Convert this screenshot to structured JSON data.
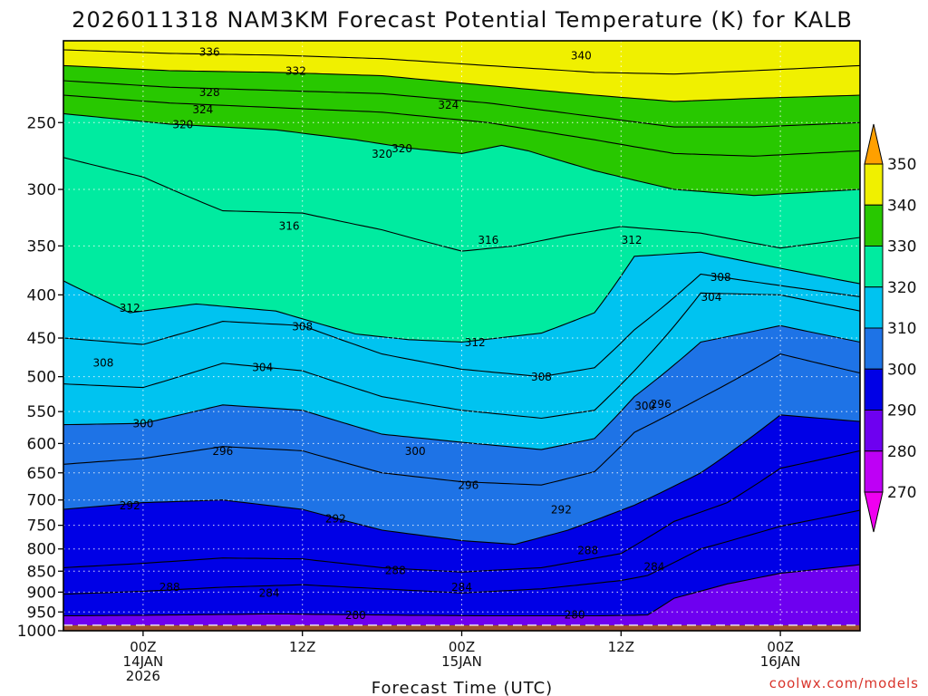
{
  "chart_data": {
    "type": "filled-contour",
    "title": "2026011318 NAM3KM Forecast Potential Temperature (K) for KALB",
    "xlabel": "Forecast Time (UTC)",
    "ylabel": "",
    "credit": "coolwx.com/models",
    "y_ticks": [
      "250",
      "300",
      "350",
      "400",
      "450",
      "500",
      "550",
      "600",
      "650",
      "700",
      "750",
      "800",
      "850",
      "900",
      "950",
      "1000"
    ],
    "x_ticks": [
      {
        "lines": [
          "00Z",
          "14JAN",
          "2026"
        ],
        "hour": 6
      },
      {
        "lines": [
          "12Z"
        ],
        "hour": 18
      },
      {
        "lines": [
          "00Z",
          "15JAN"
        ],
        "hour": 30
      },
      {
        "lines": [
          "12Z"
        ],
        "hour": 42
      },
      {
        "lines": [
          "00Z",
          "16JAN"
        ],
        "hour": 54
      }
    ],
    "x_range_hours": [
      0,
      60
    ],
    "y_range_hpa": [
      200,
      1000
    ],
    "colorbar": {
      "labels": [
        "350",
        "340",
        "330",
        "320",
        "310",
        "300",
        "290",
        "280",
        "270"
      ],
      "bins": [
        {
          "lo": 340,
          "hi": 350,
          "color": "#ffa000"
        },
        {
          "lo": 330,
          "hi": 340,
          "color": "#f0f000"
        },
        {
          "lo": 320,
          "hi": 330,
          "color": "#28c800"
        },
        {
          "lo": 310,
          "hi": 320,
          "color": "#00eba0"
        },
        {
          "lo": 300,
          "hi": 310,
          "color": "#00c3f0"
        },
        {
          "lo": 290,
          "hi": 300,
          "color": "#1e73e6"
        },
        {
          "lo": 280,
          "hi": 290,
          "color": "#0000e6"
        },
        {
          "lo": 270,
          "hi": 280,
          "color": "#6e00f0"
        },
        {
          "lo": 260,
          "hi": 270,
          "color": "#be00f5"
        },
        {
          "lo": 250,
          "hi": 260,
          "color": "#f000f0"
        }
      ]
    },
    "surface_color": "#a0522d",
    "contour_labels": [
      "336",
      "332",
      "328",
      "324",
      "320",
      "324",
      "320",
      "340",
      "316",
      "320",
      "316",
      "312",
      "312",
      "308",
      "312",
      "304",
      "308",
      "308",
      "304",
      "300",
      "308",
      "300",
      "296",
      "300",
      "296",
      "292",
      "292",
      "296",
      "292",
      "288",
      "288",
      "284",
      "288",
      "284",
      "284",
      "280",
      "280"
    ],
    "isentropes": [
      {
        "theta": 336,
        "p": [
          [
            0,
            205
          ],
          [
            8,
            207
          ],
          [
            16,
            208
          ],
          [
            24,
            210
          ],
          [
            32,
            214
          ],
          [
            40,
            218
          ],
          [
            46,
            219
          ],
          [
            52,
            217
          ],
          [
            60,
            214
          ]
        ]
      },
      {
        "theta": 332,
        "p": [
          [
            0,
            214
          ],
          [
            8,
            217
          ],
          [
            16,
            218
          ],
          [
            24,
            220
          ],
          [
            32,
            226
          ],
          [
            40,
            232
          ],
          [
            46,
            236
          ],
          [
            52,
            234
          ],
          [
            60,
            232
          ]
        ]
      },
      {
        "theta": 328,
        "p": [
          [
            0,
            223
          ],
          [
            8,
            227
          ],
          [
            16,
            229
          ],
          [
            24,
            231
          ],
          [
            32,
            237
          ],
          [
            40,
            246
          ],
          [
            46,
            253
          ],
          [
            52,
            253
          ],
          [
            60,
            250
          ]
        ]
      },
      {
        "theta": 324,
        "p": [
          [
            0,
            232
          ],
          [
            8,
            237
          ],
          [
            16,
            240
          ],
          [
            24,
            243
          ],
          [
            32,
            250
          ],
          [
            40,
            262
          ],
          [
            46,
            272
          ],
          [
            52,
            274
          ],
          [
            60,
            270
          ]
        ]
      },
      {
        "theta": 320,
        "p": [
          [
            0,
            244
          ],
          [
            8,
            251
          ],
          [
            16,
            255
          ],
          [
            22,
            262
          ],
          [
            26,
            268
          ],
          [
            30,
            272
          ],
          [
            33,
            266
          ],
          [
            35,
            270
          ],
          [
            40,
            285
          ],
          [
            46,
            300
          ],
          [
            52,
            305
          ],
          [
            60,
            300
          ]
        ]
      },
      {
        "theta": 316,
        "p": [
          [
            0,
            275
          ],
          [
            6,
            290
          ],
          [
            12,
            318
          ],
          [
            18,
            320
          ],
          [
            24,
            335
          ],
          [
            30,
            355
          ],
          [
            34,
            350
          ],
          [
            38,
            340
          ],
          [
            42,
            332
          ],
          [
            48,
            338
          ],
          [
            54,
            352
          ],
          [
            60,
            342
          ]
        ]
      },
      {
        "theta": 312,
        "p": [
          [
            0,
            385
          ],
          [
            5,
            420
          ],
          [
            10,
            410
          ],
          [
            16,
            418
          ],
          [
            22,
            445
          ],
          [
            26,
            452
          ],
          [
            30,
            455
          ],
          [
            36,
            444
          ],
          [
            40,
            420
          ],
          [
            43,
            360
          ],
          [
            48,
            356
          ],
          [
            54,
            372
          ],
          [
            60,
            388
          ]
        ]
      },
      {
        "theta": 308,
        "p": [
          [
            0,
            450
          ],
          [
            6,
            458
          ],
          [
            12,
            430
          ],
          [
            18,
            435
          ],
          [
            24,
            470
          ],
          [
            30,
            490
          ],
          [
            36,
            500
          ],
          [
            40,
            488
          ],
          [
            43,
            440
          ],
          [
            48,
            378
          ],
          [
            54,
            390
          ],
          [
            60,
            402
          ]
        ]
      },
      {
        "theta": 304,
        "p": [
          [
            0,
            510
          ],
          [
            6,
            515
          ],
          [
            12,
            482
          ],
          [
            18,
            492
          ],
          [
            24,
            528
          ],
          [
            30,
            548
          ],
          [
            36,
            560
          ],
          [
            40,
            548
          ],
          [
            43,
            492
          ],
          [
            48,
            398
          ],
          [
            54,
            400
          ],
          [
            60,
            418
          ]
        ]
      },
      {
        "theta": 300,
        "p": [
          [
            0,
            570
          ],
          [
            6,
            568
          ],
          [
            12,
            540
          ],
          [
            18,
            548
          ],
          [
            24,
            585
          ],
          [
            30,
            598
          ],
          [
            36,
            610
          ],
          [
            40,
            592
          ],
          [
            43,
            528
          ],
          [
            48,
            455
          ],
          [
            54,
            435
          ],
          [
            60,
            455
          ]
        ]
      },
      {
        "theta": 296,
        "p": [
          [
            0,
            635
          ],
          [
            6,
            625
          ],
          [
            12,
            605
          ],
          [
            18,
            612
          ],
          [
            24,
            650
          ],
          [
            30,
            666
          ],
          [
            36,
            672
          ],
          [
            40,
            648
          ],
          [
            43,
            582
          ],
          [
            48,
            530
          ],
          [
            54,
            470
          ],
          [
            60,
            495
          ]
        ]
      },
      {
        "theta": 292,
        "p": [
          [
            0,
            718
          ],
          [
            6,
            705
          ],
          [
            12,
            700
          ],
          [
            18,
            718
          ],
          [
            24,
            760
          ],
          [
            30,
            782
          ],
          [
            34,
            790
          ],
          [
            38,
            760
          ],
          [
            43,
            710
          ],
          [
            48,
            650
          ],
          [
            54,
            555
          ],
          [
            60,
            565
          ]
        ]
      },
      {
        "theta": 288,
        "p": [
          [
            0,
            842
          ],
          [
            6,
            832
          ],
          [
            12,
            820
          ],
          [
            18,
            822
          ],
          [
            24,
            842
          ],
          [
            30,
            852
          ],
          [
            36,
            842
          ],
          [
            42,
            810
          ],
          [
            46,
            742
          ],
          [
            50,
            705
          ],
          [
            54,
            642
          ],
          [
            60,
            612
          ]
        ]
      },
      {
        "theta": 284,
        "p": [
          [
            0,
            905
          ],
          [
            6,
            898
          ],
          [
            12,
            888
          ],
          [
            18,
            882
          ],
          [
            24,
            892
          ],
          [
            30,
            902
          ],
          [
            36,
            892
          ],
          [
            42,
            872
          ],
          [
            44,
            860
          ],
          [
            48,
            800
          ],
          [
            54,
            752
          ],
          [
            60,
            720
          ]
        ]
      },
      {
        "theta": 280,
        "p": [
          [
            0,
            960
          ],
          [
            8,
            958
          ],
          [
            16,
            955
          ],
          [
            24,
            958
          ],
          [
            32,
            960
          ],
          [
            40,
            960
          ],
          [
            44,
            958
          ],
          [
            46,
            915
          ],
          [
            50,
            880
          ],
          [
            54,
            855
          ],
          [
            60,
            835
          ]
        ]
      }
    ],
    "label_positions": [
      {
        "t": 336,
        "h": 11.0,
        "p": 206
      },
      {
        "t": 332,
        "h": 17.5,
        "p": 217
      },
      {
        "t": 328,
        "h": 11.0,
        "p": 230
      },
      {
        "t": 324,
        "h": 10.5,
        "p": 241
      },
      {
        "t": 320,
        "h": 9.0,
        "p": 251
      },
      {
        "t": 324,
        "h": 29.0,
        "p": 238
      },
      {
        "t": 320,
        "h": 24.0,
        "p": 272
      },
      {
        "t": 340,
        "h": 39.0,
        "p": 208
      },
      {
        "t": 316,
        "h": 17.0,
        "p": 331
      },
      {
        "t": 320,
        "h": 25.5,
        "p": 268
      },
      {
        "t": 316,
        "h": 32.0,
        "p": 344
      },
      {
        "t": 312,
        "h": 42.8,
        "p": 344
      },
      {
        "t": 312,
        "h": 5.0,
        "p": 414
      },
      {
        "t": 308,
        "h": 18.0,
        "p": 436
      },
      {
        "t": 312,
        "h": 31.0,
        "p": 455
      },
      {
        "t": 304,
        "h": 48.8,
        "p": 402
      },
      {
        "t": 308,
        "h": 49.5,
        "p": 381
      },
      {
        "t": 308,
        "h": 3.0,
        "p": 481
      },
      {
        "t": 304,
        "h": 15.0,
        "p": 487
      },
      {
        "t": 300,
        "h": 6.0,
        "p": 568
      },
      {
        "t": 308,
        "h": 36.0,
        "p": 500
      },
      {
        "t": 300,
        "h": 43.8,
        "p": 541
      },
      {
        "t": 296,
        "h": 45.0,
        "p": 538
      },
      {
        "t": 300,
        "h": 26.5,
        "p": 612
      },
      {
        "t": 296,
        "h": 12.0,
        "p": 612
      },
      {
        "t": 292,
        "h": 5.0,
        "p": 710
      },
      {
        "t": 292,
        "h": 20.5,
        "p": 736
      },
      {
        "t": 296,
        "h": 30.5,
        "p": 672
      },
      {
        "t": 292,
        "h": 37.5,
        "p": 718
      },
      {
        "t": 288,
        "h": 39.5,
        "p": 802
      },
      {
        "t": 288,
        "h": 25.0,
        "p": 847
      },
      {
        "t": 284,
        "h": 44.5,
        "p": 839
      },
      {
        "t": 288,
        "h": 8.0,
        "p": 887
      },
      {
        "t": 284,
        "h": 30.0,
        "p": 887
      },
      {
        "t": 284,
        "h": 15.5,
        "p": 901
      },
      {
        "t": 280,
        "h": 22.0,
        "p": 958
      },
      {
        "t": 280,
        "h": 38.5,
        "p": 957
      }
    ]
  }
}
